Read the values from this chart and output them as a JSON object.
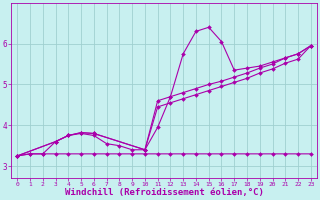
{
  "background_color": "#c8f0f0",
  "line_color": "#aa00aa",
  "grid_color": "#a0d0d0",
  "xlabel": "Windchill (Refroidissement éolien,°C)",
  "xlabel_fontsize": 6.5,
  "tick_fontsize": 5.5,
  "xlabel_color": "#aa00aa",
  "tick_color": "#aa00aa",
  "xlim": [
    -0.5,
    23.5
  ],
  "ylim": [
    2.7,
    7.0
  ],
  "yticks": [
    3,
    4,
    5,
    6
  ],
  "xticks": [
    0,
    1,
    2,
    3,
    4,
    5,
    6,
    7,
    8,
    9,
    10,
    11,
    12,
    13,
    14,
    15,
    16,
    17,
    18,
    19,
    20,
    21,
    22,
    23
  ],
  "series": [
    {
      "x": [
        0,
        1,
        2,
        3,
        4,
        5,
        6,
        7,
        8,
        9,
        10,
        11,
        12,
        13,
        14,
        15,
        16,
        17,
        18,
        19,
        20,
        21,
        22,
        23
      ],
      "y": [
        3.25,
        3.3,
        3.3,
        3.3,
        3.3,
        3.3,
        3.3,
        3.3,
        3.3,
        3.3,
        3.3,
        3.3,
        3.3,
        3.3,
        3.3,
        3.3,
        3.3,
        3.3,
        3.3,
        3.3,
        3.3,
        3.3,
        3.3,
        3.3
      ]
    },
    {
      "x": [
        0,
        1,
        2,
        3,
        4,
        5,
        6,
        7,
        8,
        9,
        10,
        11,
        12,
        13,
        14,
        15,
        16,
        17,
        18,
        19,
        20,
        21,
        22,
        23
      ],
      "y": [
        3.25,
        3.3,
        3.3,
        3.6,
        3.75,
        3.8,
        3.75,
        3.55,
        3.5,
        3.4,
        3.4,
        3.95,
        4.7,
        5.75,
        6.3,
        6.4,
        6.05,
        5.35,
        5.4,
        5.45,
        5.55,
        5.65,
        5.75,
        5.95
      ]
    },
    {
      "x": [
        0,
        3,
        4,
        5,
        6,
        10,
        11,
        12,
        13,
        14,
        15,
        16,
        17,
        18,
        19,
        20,
        21,
        22,
        23
      ],
      "y": [
        3.25,
        3.6,
        3.75,
        3.82,
        3.8,
        3.4,
        4.6,
        4.7,
        4.8,
        4.9,
        5.0,
        5.08,
        5.18,
        5.28,
        5.4,
        5.5,
        5.65,
        5.75,
        5.95
      ]
    },
    {
      "x": [
        0,
        3,
        4,
        5,
        6,
        10,
        11,
        12,
        13,
        14,
        15,
        16,
        17,
        18,
        19,
        20,
        21,
        22,
        23
      ],
      "y": [
        3.25,
        3.6,
        3.75,
        3.82,
        3.8,
        3.4,
        4.45,
        4.55,
        4.65,
        4.75,
        4.85,
        4.95,
        5.05,
        5.15,
        5.28,
        5.38,
        5.52,
        5.62,
        5.95
      ]
    }
  ]
}
